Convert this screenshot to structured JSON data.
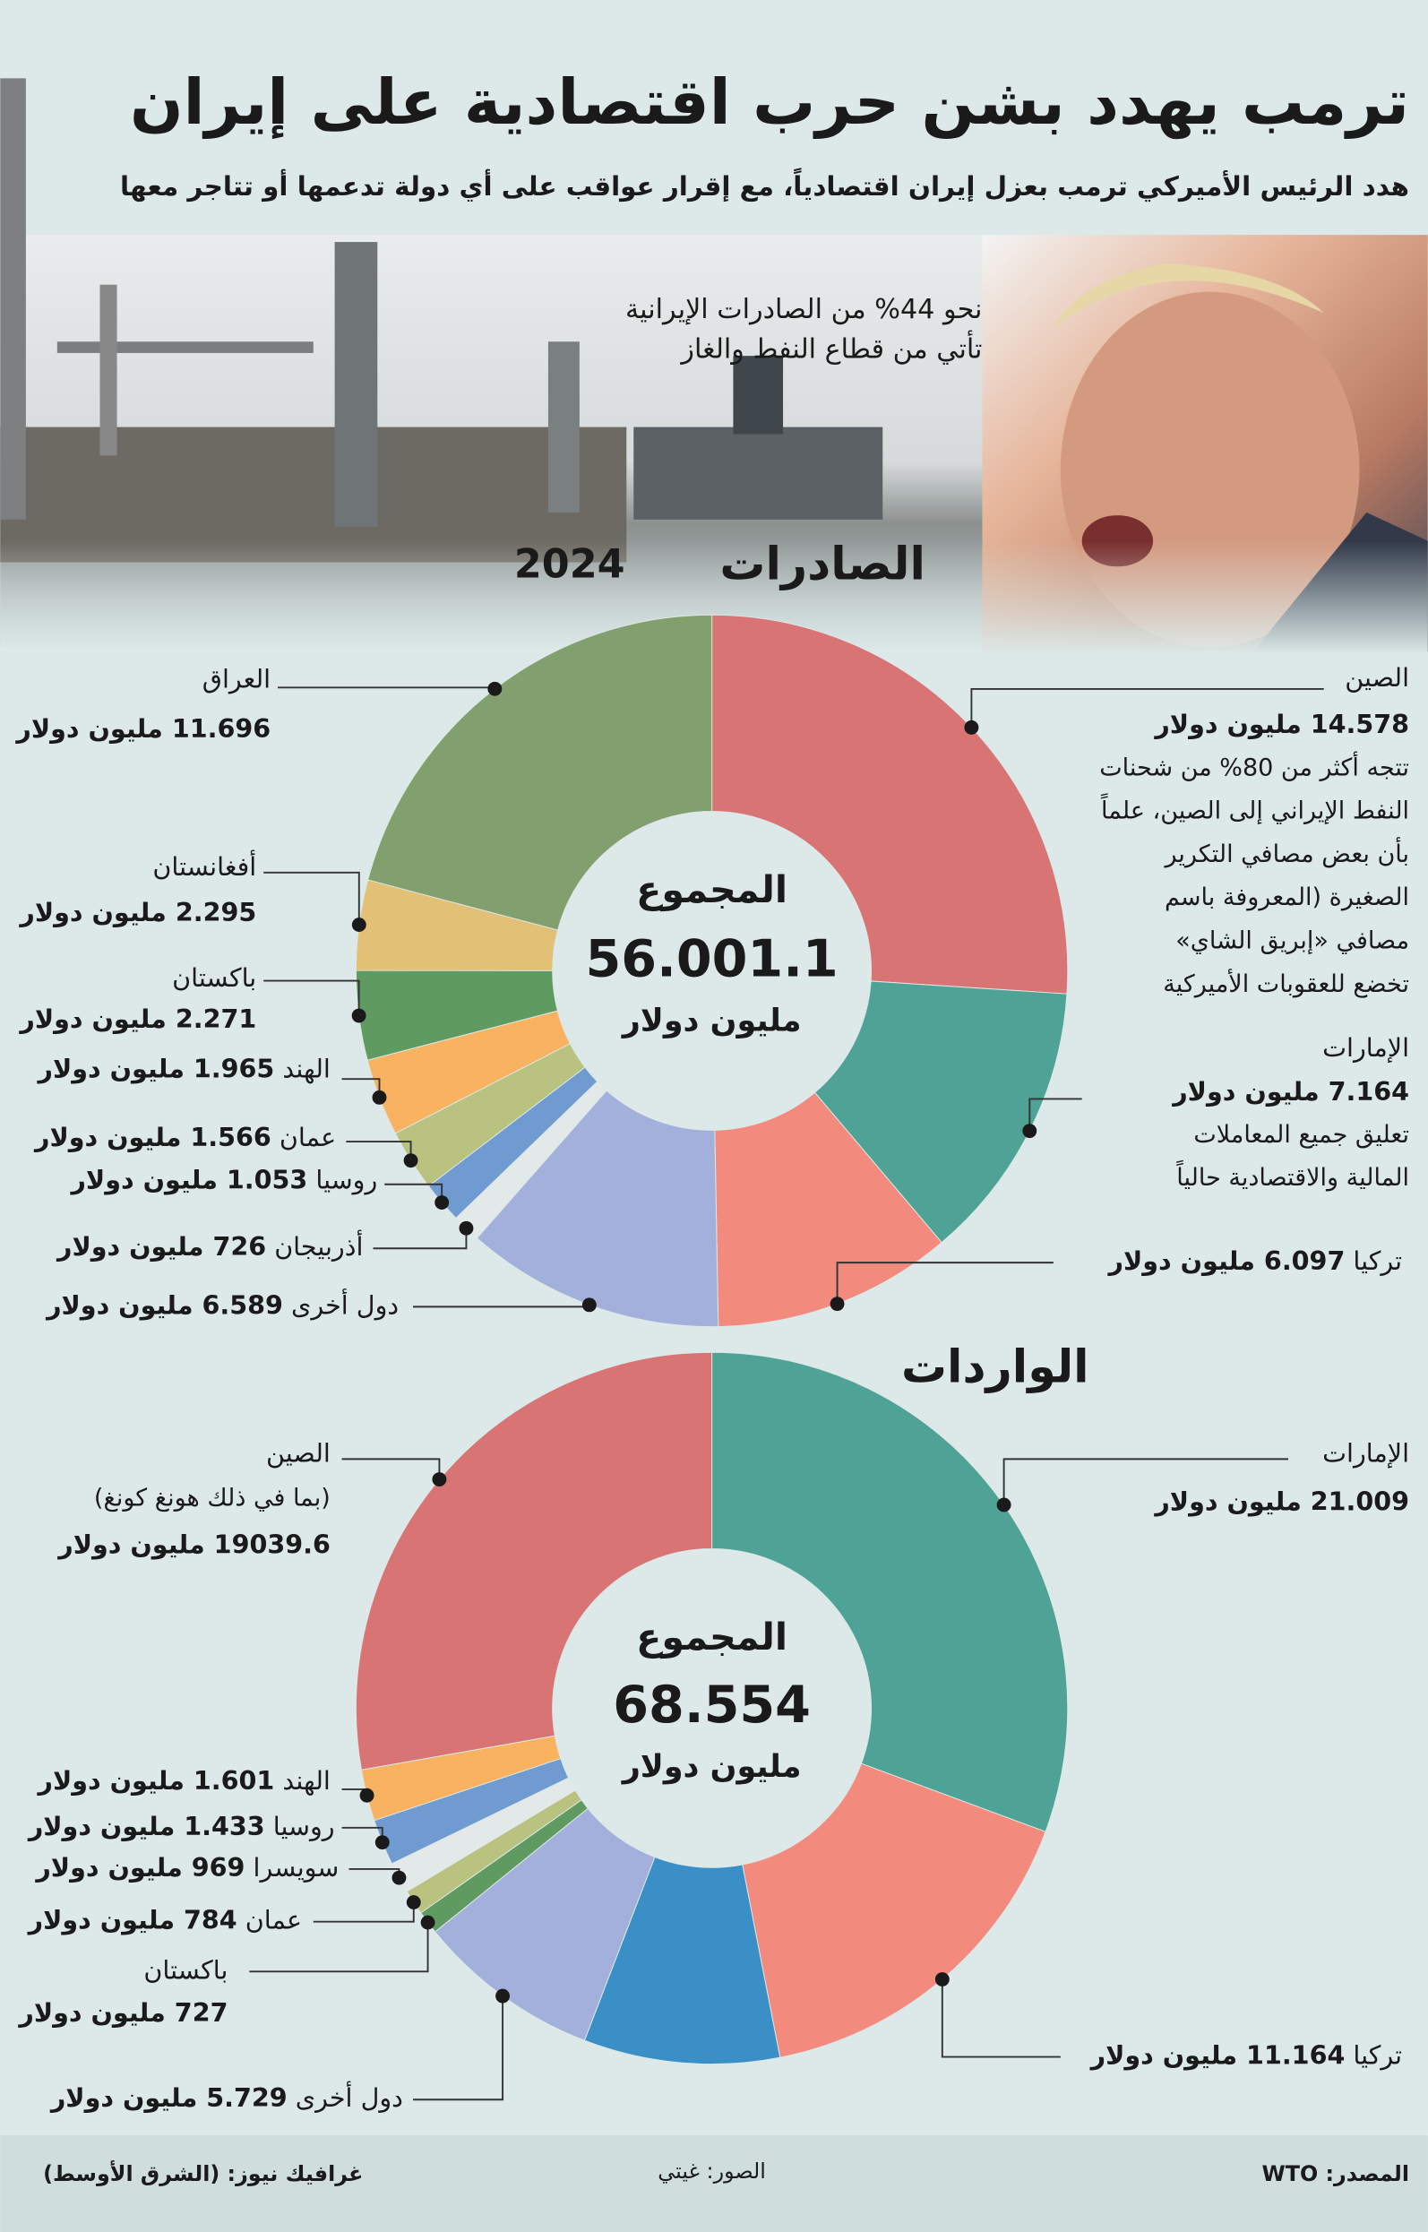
{
  "header": {
    "title": "ترمب يهدد بشن حرب اقتصادية على إيران",
    "subtitle": "هدد الرئيس الأميركي ترمب بعزل إيران اقتصادياً، مع إقرار عواقب على أي دولة تدعمها أو تتاجر معها"
  },
  "photo_caption": [
    "نحو 44% من الصادرات الإيرانية",
    "تأتي من قطاع النفط والغاز"
  ],
  "chart_data": [
    {
      "type": "donut",
      "title": "الصادرات",
      "subtitle": "2024",
      "total_label": "المجموع",
      "total": "56.001.1",
      "total_unit": "مليون دولار",
      "categories": [
        "الصين",
        "الإمارات",
        "تركيا",
        "دول أخرى",
        "أذربيجان",
        "روسيا",
        "عمان",
        "الهند",
        "باكستان",
        "أفغانستان",
        "العراق"
      ],
      "values": [
        14578,
        7164,
        6097,
        6589,
        726,
        1053,
        1566,
        1965,
        2271,
        2295,
        11696
      ],
      "value_labels": [
        "14.578 مليون دولار",
        "7.164 مليون دولار",
        "6.097 مليون دولار",
        "6.589 مليون دولار",
        "726 مليون دولار",
        "1.053 مليون دولار",
        "1.566 مليون دولار",
        "1.965 مليون دولار",
        "2.271 مليون دولار",
        "2.295 مليون دولار",
        "11.696 مليون دولار"
      ],
      "colors": [
        "#d97474",
        "#4fa396",
        "#f28b7d",
        "#a4b0dc",
        "#e3e8e8",
        "#6f9bd0",
        "#b9c27f",
        "#f9b25f",
        "#5f9b61",
        "#e2c075",
        "#82a06e"
      ],
      "notes": [
        [
          "تتجه أكثر من 80% من شحنات",
          "النفط الإيراني إلى الصين، علماً",
          "بأن بعض مصافي التكرير",
          "الصغيرة (المعروفة باسم",
          "مصافي «إبريق الشاي»",
          "تخضع للعقوبات الأميركية"
        ],
        [
          "تعليق جميع المعاملات",
          "المالية والاقتصادية حالياً"
        ],
        null,
        null,
        null,
        null,
        null,
        null,
        null,
        null,
        null
      ]
    },
    {
      "type": "donut",
      "title": "الواردات",
      "total_label": "المجموع",
      "total": "68.554",
      "total_unit": "مليون دولار",
      "categories": [
        "الإمارات",
        "تركيا",
        null,
        "دول أخرى",
        "باكستان",
        "عمان",
        "سويسرا",
        "روسيا",
        "الهند",
        "الصين"
      ],
      "values": [
        21009,
        11164,
        6098,
        5729,
        727,
        784,
        969,
        1433,
        1601,
        19039.6
      ],
      "value_labels": [
        "21.009 مليون دولار",
        "11.164 مليون دولار",
        null,
        "5.729 مليون دولار",
        "727 مليون دولار",
        "784 مليون دولار",
        "969 مليون دولار",
        "1.433 مليون دولار",
        "1.601 مليون دولار",
        "19039.6 مليون دولار"
      ],
      "colors": [
        "#4fa396",
        "#f28b7d",
        "#3a8fc7",
        "#a4b0dc",
        "#5f9b61",
        "#b9c27f",
        "#e3e8e8",
        "#6f9bd0",
        "#f9b25f",
        "#d97474"
      ],
      "notes": [
        null,
        null,
        null,
        null,
        null,
        null,
        null,
        null,
        null,
        [
          "(بما في ذلك هونغ كونغ)"
        ]
      ]
    }
  ],
  "footer": {
    "source": "المصدر: WTO",
    "photos": "الصور: غيتي",
    "credit": "غرافيك نيوز: (الشرق الأوسط)"
  }
}
